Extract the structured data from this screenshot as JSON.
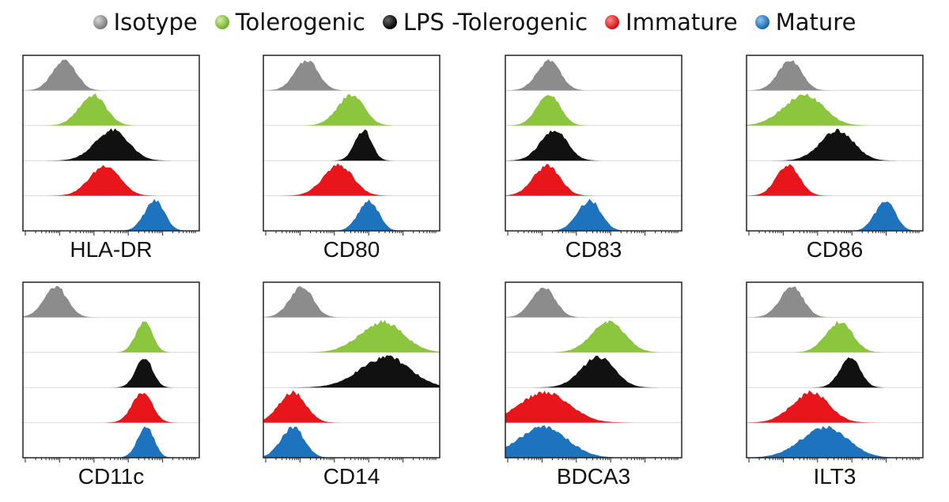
{
  "legend": [
    {
      "label": "Isotype",
      "color": "#8c8c8c"
    },
    {
      "label": "Tolerogenic",
      "color": "#8cc63f"
    },
    {
      "label": "LPS -Tolerogenic",
      "color": "#111111"
    },
    {
      "label": "Immature",
      "color": "#e8161b"
    },
    {
      "label": "Mature",
      "color": "#1e73be"
    }
  ],
  "chart_data": {
    "type": "area",
    "title": "",
    "description_x": "fluorescence intensity (log scale), peak positions normalized 0-1 along x-axis",
    "series_names": [
      "Isotype",
      "Tolerogenic",
      "LPS -Tolerogenic",
      "Immature",
      "Mature"
    ],
    "panels": [
      {
        "label": "HLA-DR",
        "peaks": [
          {
            "series": "Isotype",
            "center": 0.24,
            "width": 0.07
          },
          {
            "series": "Tolerogenic",
            "center": 0.4,
            "width": 0.08
          },
          {
            "series": "LPS -Tolerogenic",
            "center": 0.51,
            "width": 0.1
          },
          {
            "series": "Immature",
            "center": 0.47,
            "width": 0.09
          },
          {
            "series": "Mature",
            "center": 0.75,
            "width": 0.06
          }
        ]
      },
      {
        "label": "CD80",
        "peaks": [
          {
            "series": "Isotype",
            "center": 0.25,
            "width": 0.07
          },
          {
            "series": "Tolerogenic",
            "center": 0.5,
            "width": 0.08
          },
          {
            "series": "LPS -Tolerogenic",
            "center": 0.57,
            "width": 0.05
          },
          {
            "series": "Immature",
            "center": 0.43,
            "width": 0.09
          },
          {
            "series": "Mature",
            "center": 0.6,
            "width": 0.06
          }
        ]
      },
      {
        "label": "CD83",
        "peaks": [
          {
            "series": "Isotype",
            "center": 0.25,
            "width": 0.07
          },
          {
            "series": "Tolerogenic",
            "center": 0.25,
            "width": 0.07
          },
          {
            "series": "LPS -Tolerogenic",
            "center": 0.28,
            "width": 0.08
          },
          {
            "series": "Immature",
            "center": 0.24,
            "width": 0.08
          },
          {
            "series": "Mature",
            "center": 0.48,
            "width": 0.07
          }
        ]
      },
      {
        "label": "CD86",
        "peaks": [
          {
            "series": "Isotype",
            "center": 0.25,
            "width": 0.07
          },
          {
            "series": "Tolerogenic",
            "center": 0.33,
            "width": 0.12
          },
          {
            "series": "LPS -Tolerogenic",
            "center": 0.52,
            "width": 0.1
          },
          {
            "series": "Immature",
            "center": 0.24,
            "width": 0.07
          },
          {
            "series": "Mature",
            "center": 0.79,
            "width": 0.06
          }
        ]
      },
      {
        "label": "CD11c",
        "peaks": [
          {
            "series": "Isotype",
            "center": 0.19,
            "width": 0.07
          },
          {
            "series": "Tolerogenic",
            "center": 0.69,
            "width": 0.05
          },
          {
            "series": "LPS -Tolerogenic",
            "center": 0.69,
            "width": 0.05
          },
          {
            "series": "Immature",
            "center": 0.68,
            "width": 0.06
          },
          {
            "series": "Mature",
            "center": 0.7,
            "width": 0.05
          }
        ]
      },
      {
        "label": "CD14",
        "peaks": [
          {
            "series": "Isotype",
            "center": 0.22,
            "width": 0.07
          },
          {
            "series": "Tolerogenic",
            "center": 0.68,
            "width": 0.13
          },
          {
            "series": "LPS -Tolerogenic",
            "center": 0.7,
            "width": 0.15
          },
          {
            "series": "Immature",
            "center": 0.17,
            "width": 0.08
          },
          {
            "series": "Mature",
            "center": 0.17,
            "width": 0.07
          }
        ]
      },
      {
        "label": "BDCA3",
        "peaks": [
          {
            "series": "Isotype",
            "center": 0.22,
            "width": 0.07
          },
          {
            "series": "Tolerogenic",
            "center": 0.59,
            "width": 0.1
          },
          {
            "series": "LPS -Tolerogenic",
            "center": 0.53,
            "width": 0.1
          },
          {
            "series": "Immature",
            "center": 0.23,
            "width": 0.15
          },
          {
            "series": "Mature",
            "center": 0.22,
            "width": 0.15
          }
        ]
      },
      {
        "label": "ILT3",
        "peaks": [
          {
            "series": "Isotype",
            "center": 0.26,
            "width": 0.07
          },
          {
            "series": "Tolerogenic",
            "center": 0.53,
            "width": 0.08
          },
          {
            "series": "LPS -Tolerogenic",
            "center": 0.59,
            "width": 0.06
          },
          {
            "series": "Immature",
            "center": 0.37,
            "width": 0.11
          },
          {
            "series": "Mature",
            "center": 0.45,
            "width": 0.14
          }
        ]
      }
    ]
  }
}
